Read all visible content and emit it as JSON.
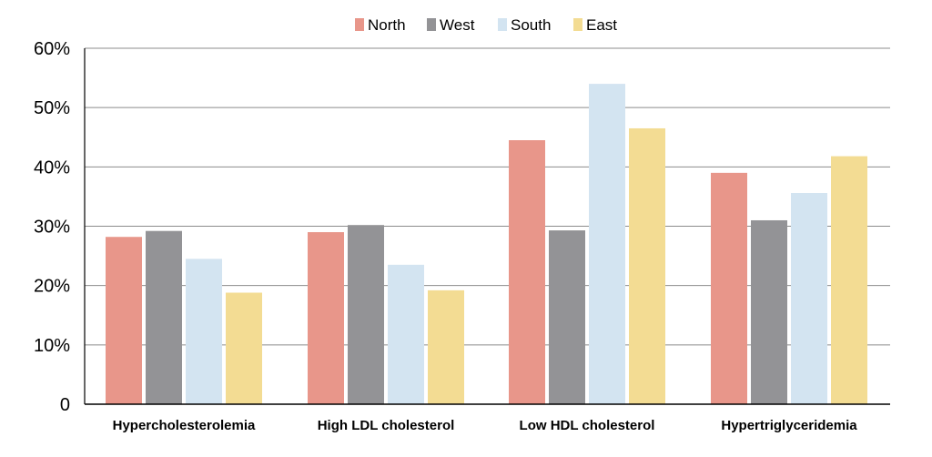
{
  "chart_data": {
    "type": "bar",
    "title": "",
    "xlabel": "",
    "ylabel": "",
    "ylim": [
      0,
      60
    ],
    "grid": true,
    "legend_position": "top-center",
    "y_ticks": [
      {
        "value": 0,
        "label": "0"
      },
      {
        "value": 10,
        "label": "10%"
      },
      {
        "value": 20,
        "label": "20%"
      },
      {
        "value": 30,
        "label": "30%"
      },
      {
        "value": 40,
        "label": "40%"
      },
      {
        "value": 50,
        "label": "50%"
      },
      {
        "value": 60,
        "label": "60%"
      }
    ],
    "categories": [
      "Hypercholesterolemia",
      "High LDL cholesterol",
      "Low HDL cholesterol",
      "Hypertriglyceridemia"
    ],
    "series": [
      {
        "name": "North",
        "color": "#E8968A",
        "values": [
          28.2,
          29.0,
          44.5,
          39.0
        ]
      },
      {
        "name": "West",
        "color": "#939396",
        "values": [
          29.2,
          30.2,
          29.3,
          31.0
        ]
      },
      {
        "name": "South",
        "color": "#D3E4F1",
        "values": [
          24.5,
          23.5,
          54.0,
          35.6
        ]
      },
      {
        "name": "East",
        "color": "#F3DC93",
        "values": [
          18.8,
          19.2,
          46.5,
          41.8
        ]
      }
    ]
  }
}
